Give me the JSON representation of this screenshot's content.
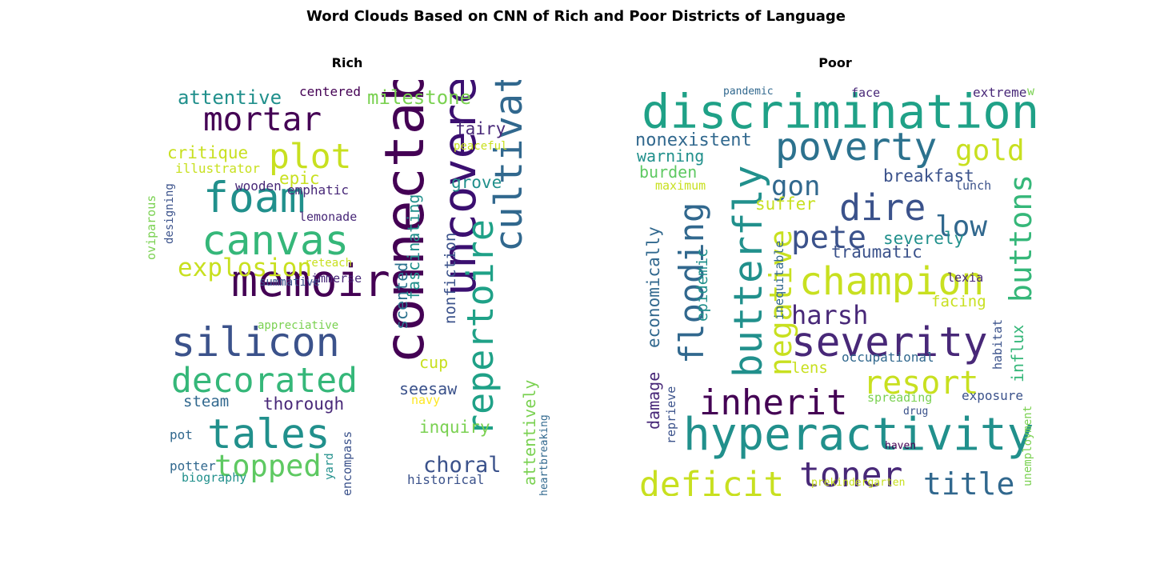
{
  "title": "Word Clouds Based on CNN of Rich and Poor Districts of Language",
  "chart_data": [
    {
      "type": "wordcloud",
      "title": "Rich",
      "words": [
        {
          "text": "connectable",
          "weight": 100,
          "color": "#440154",
          "vertical": true
        },
        {
          "text": "uncovered",
          "weight": 82,
          "color": "#3b0f70",
          "vertical": true
        },
        {
          "text": "memoir",
          "weight": 78,
          "color": "#440154"
        },
        {
          "text": "foam",
          "weight": 75,
          "color": "#21908c"
        },
        {
          "text": "canvas",
          "weight": 72,
          "color": "#35b779"
        },
        {
          "text": "silicon",
          "weight": 70,
          "color": "#3b528b"
        },
        {
          "text": "tales",
          "weight": 72,
          "color": "#21908c"
        },
        {
          "text": "cultivated",
          "weight": 65,
          "color": "#31688e",
          "vertical": true
        },
        {
          "text": "repertoire",
          "weight": 62,
          "color": "#1fa187",
          "vertical": true
        },
        {
          "text": "decorated",
          "weight": 58,
          "color": "#35b779"
        },
        {
          "text": "plot",
          "weight": 58,
          "color": "#c8e020"
        },
        {
          "text": "mortar",
          "weight": 55,
          "color": "#440154"
        },
        {
          "text": "topped",
          "weight": 48,
          "color": "#5ec962"
        },
        {
          "text": "explosion",
          "weight": 38,
          "color": "#c8e020"
        },
        {
          "text": "choral",
          "weight": 32,
          "color": "#3b528b"
        },
        {
          "text": "attentive",
          "weight": 26,
          "color": "#21908c"
        },
        {
          "text": "milestone",
          "weight": 26,
          "color": "#7ad151"
        },
        {
          "text": "critique",
          "weight": 22,
          "color": "#c8e020"
        },
        {
          "text": "epic",
          "weight": 22,
          "color": "#c8e020"
        },
        {
          "text": "fairy",
          "weight": 22,
          "color": "#482878"
        },
        {
          "text": "grove",
          "weight": 22,
          "color": "#21908c"
        },
        {
          "text": "thorough",
          "weight": 22,
          "color": "#482878"
        },
        {
          "text": "inquiry",
          "weight": 22,
          "color": "#7ad151"
        },
        {
          "text": "seesaw",
          "weight": 20,
          "color": "#3b528b"
        },
        {
          "text": "fascinating",
          "weight": 20,
          "color": "#21908c",
          "vertical": true
        },
        {
          "text": "scented",
          "weight": 20,
          "color": "#2c728e",
          "vertical": true
        },
        {
          "text": "attentively",
          "weight": 20,
          "color": "#7ad151",
          "vertical": true
        },
        {
          "text": "cup",
          "weight": 20,
          "color": "#c8e020"
        },
        {
          "text": "nonfiction",
          "weight": 18,
          "color": "#3b528b",
          "vertical": true
        },
        {
          "text": "steam",
          "weight": 18,
          "color": "#31688e"
        },
        {
          "text": "historical",
          "weight": 14,
          "color": "#3b528b"
        },
        {
          "text": "potter",
          "weight": 14,
          "color": "#31688e"
        },
        {
          "text": "centered",
          "weight": 14,
          "color": "#440154"
        },
        {
          "text": "illustrator",
          "weight": 13,
          "color": "#c8e020"
        },
        {
          "text": "wooden",
          "weight": 13,
          "color": "#482878"
        },
        {
          "text": "emphatic",
          "weight": 13,
          "color": "#482878"
        },
        {
          "text": "lemonade",
          "weight": 12,
          "color": "#482878"
        },
        {
          "text": "pot",
          "weight": 13,
          "color": "#31688e"
        },
        {
          "text": "biography",
          "weight": 12,
          "color": "#21908c"
        },
        {
          "text": "encompass",
          "weight": 12,
          "color": "#3b528b",
          "vertical": true
        },
        {
          "text": "oviparous",
          "weight": 12,
          "color": "#7ad151",
          "vertical": true
        },
        {
          "text": "designing",
          "weight": 10,
          "color": "#3b528b",
          "vertical": true
        },
        {
          "text": "yard",
          "weight": 10,
          "color": "#21908c",
          "vertical": true
        },
        {
          "text": "navy",
          "weight": 11,
          "color": "#fde725"
        },
        {
          "text": "immerse",
          "weight": 11,
          "color": "#482878"
        },
        {
          "text": "summative",
          "weight": 10,
          "color": "#3b528b"
        },
        {
          "text": "reteach",
          "weight": 10,
          "color": "#c8e020"
        },
        {
          "text": "peaceful",
          "weight": 10,
          "color": "#c8e020"
        },
        {
          "text": "appreciative",
          "weight": 10,
          "color": "#7ad151"
        },
        {
          "text": "heartbreaking",
          "weight": 9,
          "color": "#31688e",
          "vertical": true
        }
      ]
    },
    {
      "type": "wordcloud",
      "title": "Poor",
      "words": [
        {
          "text": "discrimination",
          "weight": 85,
          "color": "#1fa187"
        },
        {
          "text": "hyperactivity",
          "weight": 80,
          "color": "#21908c"
        },
        {
          "text": "severity",
          "weight": 72,
          "color": "#482878"
        },
        {
          "text": "butterfly",
          "weight": 68,
          "color": "#21908c",
          "vertical": true
        },
        {
          "text": "poverty",
          "weight": 66,
          "color": "#2c728e"
        },
        {
          "text": "champion",
          "weight": 66,
          "color": "#c8e020"
        },
        {
          "text": "dire",
          "weight": 62,
          "color": "#3b528b"
        },
        {
          "text": "inherit",
          "weight": 60,
          "color": "#440154"
        },
        {
          "text": "toner",
          "weight": 58,
          "color": "#482878"
        },
        {
          "text": "deficit",
          "weight": 58,
          "color": "#c8e020"
        },
        {
          "text": "flooding",
          "weight": 56,
          "color": "#31688e",
          "vertical": true
        },
        {
          "text": "resort",
          "weight": 54,
          "color": "#c8e020"
        },
        {
          "text": "pete",
          "weight": 52,
          "color": "#3b528b"
        },
        {
          "text": "negative",
          "weight": 50,
          "color": "#c8e020",
          "vertical": true
        },
        {
          "text": "buttons",
          "weight": 50,
          "color": "#35b779",
          "vertical": true
        },
        {
          "text": "title",
          "weight": 50,
          "color": "#31688e"
        },
        {
          "text": "low",
          "weight": 46,
          "color": "#31688e"
        },
        {
          "text": "gold",
          "weight": 46,
          "color": "#c8e020"
        },
        {
          "text": "gon",
          "weight": 44,
          "color": "#31688e"
        },
        {
          "text": "harsh",
          "weight": 40,
          "color": "#482878"
        },
        {
          "text": "nonexistent",
          "weight": 24,
          "color": "#31688e"
        },
        {
          "text": "economically",
          "weight": 22,
          "color": "#31688e",
          "vertical": true
        },
        {
          "text": "breakfast",
          "weight": 22,
          "color": "#3b528b"
        },
        {
          "text": "severely",
          "weight": 22,
          "color": "#21908c"
        },
        {
          "text": "traumatic",
          "weight": 22,
          "color": "#3b528b"
        },
        {
          "text": "suffer",
          "weight": 22,
          "color": "#c8e020"
        },
        {
          "text": "warning",
          "weight": 20,
          "color": "#21908c"
        },
        {
          "text": "burden",
          "weight": 20,
          "color": "#5ec962"
        },
        {
          "text": "influx",
          "weight": 20,
          "color": "#35b779",
          "vertical": true
        },
        {
          "text": "damage",
          "weight": 20,
          "color": "#482878",
          "vertical": true
        },
        {
          "text": "epidemic",
          "weight": 18,
          "color": "#21908c",
          "vertical": true
        },
        {
          "text": "facing",
          "weight": 18,
          "color": "#c8e020"
        },
        {
          "text": "lens",
          "weight": 18,
          "color": "#c8e020"
        },
        {
          "text": "occupational",
          "weight": 14,
          "color": "#31688e"
        },
        {
          "text": "exposure",
          "weight": 14,
          "color": "#3b528b"
        },
        {
          "text": "extreme",
          "weight": 14,
          "color": "#482878"
        },
        {
          "text": "reprieve",
          "weight": 12,
          "color": "#3b528b",
          "vertical": true
        },
        {
          "text": "spreading",
          "weight": 12,
          "color": "#7ad151"
        },
        {
          "text": "lunch",
          "weight": 12,
          "color": "#3b528b"
        },
        {
          "text": "lexia",
          "weight": 12,
          "color": "#482878"
        },
        {
          "text": "face",
          "weight": 12,
          "color": "#482878"
        },
        {
          "text": "maximum",
          "weight": 11,
          "color": "#c8e020"
        },
        {
          "text": "inequitable",
          "weight": 11,
          "color": "#31688e",
          "vertical": true
        },
        {
          "text": "habitat",
          "weight": 11,
          "color": "#3b528b",
          "vertical": true
        },
        {
          "text": "unemployment",
          "weight": 10,
          "color": "#7ad151",
          "vertical": true
        },
        {
          "text": "pandemic",
          "weight": 9,
          "color": "#31688e"
        },
        {
          "text": "drug",
          "weight": 9,
          "color": "#3b528b"
        },
        {
          "text": "haven",
          "weight": 9,
          "color": "#440154"
        },
        {
          "text": "prekindergarten",
          "weight": 9,
          "color": "#c8e020"
        },
        {
          "text": "w",
          "weight": 12,
          "color": "#7ad151"
        }
      ]
    }
  ]
}
